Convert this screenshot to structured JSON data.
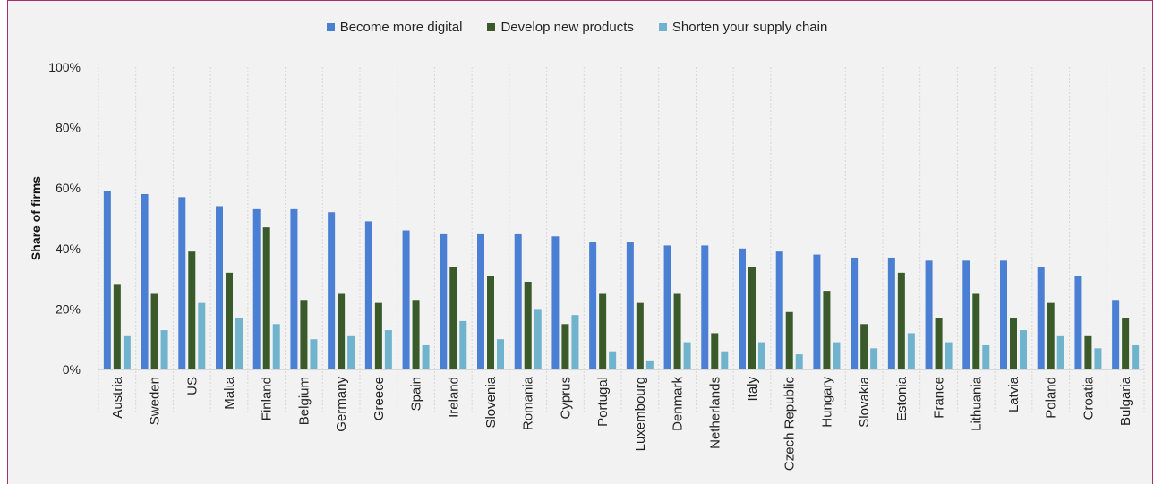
{
  "chart_data": {
    "type": "bar",
    "ylabel": "Share of firms",
    "ylim": [
      0,
      100
    ],
    "yticks": [
      "0%",
      "20%",
      "40%",
      "60%",
      "80%",
      "100%"
    ],
    "ytick_values": [
      0,
      20,
      40,
      60,
      80,
      100
    ],
    "grid": "vertical category separators (dotted)",
    "legend_position": "top-center",
    "categories": [
      "Austria",
      "Sweden",
      "US",
      "Malta",
      "Finland",
      "Belgium",
      "Germany",
      "Greece",
      "Spain",
      "Ireland",
      "Slovenia",
      "Romania",
      "Cyprus",
      "Portugal",
      "Luxembourg",
      "Denmark",
      "Netherlands",
      "Italy",
      "Czech Republic",
      "Hungary",
      "Slovakia",
      "Estonia",
      "France",
      "Lithuania",
      "Latvia",
      "Poland",
      "Croatia",
      "Bulgaria"
    ],
    "series": [
      {
        "name": "Become more digital",
        "color": "#4a7fd4",
        "values": [
          59,
          58,
          57,
          54,
          53,
          53,
          52,
          49,
          46,
          45,
          45,
          45,
          44,
          42,
          42,
          41,
          41,
          40,
          39,
          38,
          37,
          37,
          36,
          36,
          36,
          34,
          31,
          23
        ]
      },
      {
        "name": "Develop new products",
        "color": "#3a5a2a",
        "values": [
          28,
          25,
          39,
          32,
          47,
          23,
          25,
          22,
          23,
          34,
          31,
          29,
          15,
          25,
          22,
          25,
          12,
          34,
          19,
          26,
          15,
          32,
          17,
          25,
          17,
          22,
          11,
          17
        ]
      },
      {
        "name": "Shorten your supply chain",
        "color": "#6fb3cc",
        "values": [
          11,
          13,
          22,
          17,
          15,
          10,
          11,
          13,
          8,
          16,
          10,
          20,
          18,
          6,
          3,
          9,
          6,
          9,
          5,
          9,
          7,
          12,
          9,
          8,
          13,
          11,
          7,
          8
        ]
      }
    ]
  }
}
